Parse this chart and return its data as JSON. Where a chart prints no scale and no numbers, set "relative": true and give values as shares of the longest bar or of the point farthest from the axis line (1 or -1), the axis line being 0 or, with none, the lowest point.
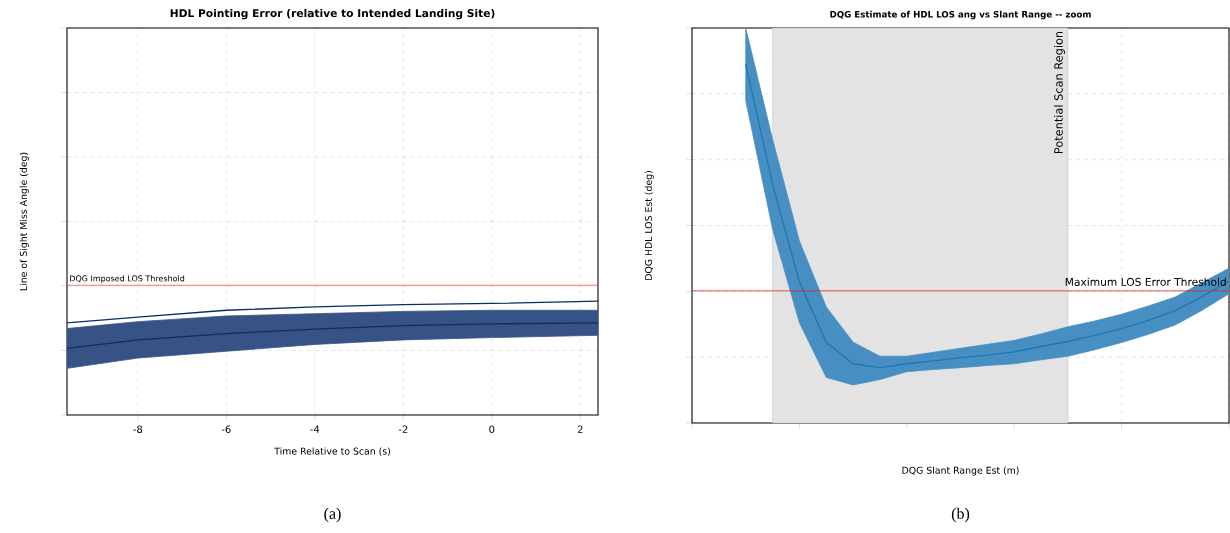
{
  "chart_data": [
    {
      "type": "line",
      "title": "HDL Pointing Error (relative to Intended Landing Site)",
      "xlabel": "Time Relative to Scan (s)",
      "ylabel": "Line of Sight Miss Angle (deg)",
      "relative": true,
      "x": [
        -9.6,
        -8,
        -6,
        -4,
        -2,
        0,
        2.4
      ],
      "series": [
        {
          "color": "#0b2d6b",
          "values": [
            0.585,
            0.66,
            0.715,
            0.755,
            0.785,
            0.8,
            0.81
          ],
          "lower": [
            0.41,
            0.5,
            0.56,
            0.62,
            0.66,
            0.68,
            0.7
          ],
          "upper": [
            0.76,
            0.82,
            0.87,
            0.89,
            0.91,
            0.92,
            0.92
          ]
        },
        {
          "color": "#0b2d6b",
          "values": [
            0.81,
            0.86,
            0.92,
            0.95,
            0.97,
            0.98,
            1.0
          ]
        }
      ],
      "xlim": [
        -9.6,
        2.4
      ],
      "xticks": [
        -8,
        -6,
        -4,
        -2,
        0,
        2
      ],
      "tick_labels": "x",
      "grid": true,
      "ref_lines": [
        {
          "axis": "y",
          "value": 1.14,
          "label": "DQG Imposed LOS Threshold",
          "color": "#f05050"
        }
      ],
      "annotations": [
        "(a)"
      ]
    },
    {
      "type": "line",
      "title": "DQG Estimate of HDL LOS ang vs Slant Range -- zoom",
      "xlabel": "DQG Slant Range Est (m)",
      "ylabel": "DQG HDL LOS Est (deg)",
      "relative": true,
      "categories": [
        null,
        null,
        null,
        null,
        null,
        null,
        null,
        null,
        null,
        null,
        null,
        null,
        null,
        null,
        null,
        null,
        null,
        null,
        null,
        null,
        null
      ],
      "series": [
        {
          "color": "#1f77b4",
          "values": [
            null,
            null,
            1.0,
            0.665,
            0.393,
            0.225,
            0.165,
            0.154,
            0.165,
            0.173,
            0.182,
            0.189,
            0.198,
            0.213,
            0.227,
            0.244,
            0.263,
            0.286,
            0.313,
            0.352,
            0.395
          ],
          "lower": [
            null,
            null,
            0.898,
            0.54,
            0.279,
            0.127,
            0.106,
            0.121,
            0.143,
            0.149,
            0.154,
            0.16,
            0.165,
            0.176,
            0.186,
            0.204,
            0.224,
            0.247,
            0.273,
            0.314,
            0.36
          ],
          "upper": [
            null,
            null,
            1.1,
            0.79,
            0.507,
            0.323,
            0.225,
            0.186,
            0.186,
            0.197,
            0.208,
            0.219,
            0.23,
            0.248,
            0.268,
            0.284,
            0.303,
            0.326,
            0.351,
            0.391,
            0.431
          ]
        }
      ],
      "tick_labels": false,
      "grid": true,
      "ref_lines": [
        {
          "axis": "y",
          "value": 0.368,
          "label": "Maximum LOS Error Threshold",
          "color": "#d62728"
        }
      ],
      "annotations": [
        "Potential Scan Region",
        "(b)"
      ]
    }
  ]
}
